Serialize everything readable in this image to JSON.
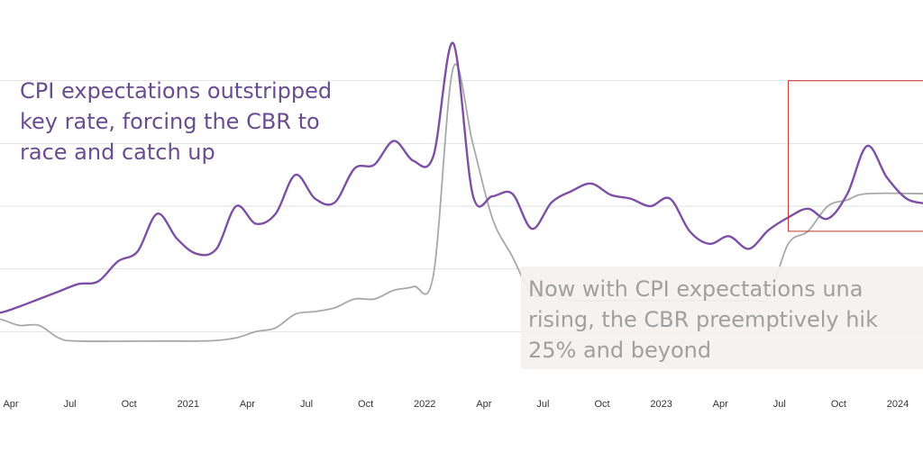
{
  "chart_data": {
    "type": "line",
    "x_ticks": [
      "Apr",
      "Jul",
      "Oct",
      "2021",
      "Apr",
      "Jul",
      "Oct",
      "2022",
      "Apr",
      "Jul",
      "Oct",
      "2023",
      "Apr",
      "Jul",
      "Oct",
      "2024"
    ],
    "ylim": [
      0,
      30
    ],
    "grid": "horizontal",
    "series": [
      {
        "color": "#7d4fa6",
        "points": [
          [
            "2020-03-01",
            6.5
          ],
          [
            "2020-04-01",
            6.5
          ],
          [
            "2020-05-01",
            7.0
          ],
          [
            "2020-06-01",
            7.6
          ],
          [
            "2020-07-01",
            8.2
          ],
          [
            "2020-08-01",
            8.8
          ],
          [
            "2020-09-01",
            9.0
          ],
          [
            "2020-10-01",
            10.6
          ],
          [
            "2020-11-01",
            11.4
          ],
          [
            "2020-12-01",
            14.4
          ],
          [
            "2021-01-01",
            12.4
          ],
          [
            "2021-02-01",
            11.2
          ],
          [
            "2021-03-01",
            11.6
          ],
          [
            "2021-04-01",
            15.0
          ],
          [
            "2021-05-01",
            13.6
          ],
          [
            "2021-06-01",
            14.4
          ],
          [
            "2021-07-01",
            17.5
          ],
          [
            "2021-08-01",
            15.6
          ],
          [
            "2021-09-01",
            15.3
          ],
          [
            "2021-10-01",
            18.0
          ],
          [
            "2021-11-01",
            18.3
          ],
          [
            "2021-12-01",
            20.2
          ],
          [
            "2022-01-01",
            18.6
          ],
          [
            "2022-02-01",
            19.0
          ],
          [
            "2022-03-01",
            28.0
          ],
          [
            "2022-04-01",
            15.9
          ],
          [
            "2022-05-01",
            15.8
          ],
          [
            "2022-06-01",
            16.0
          ],
          [
            "2022-07-01",
            13.2
          ],
          [
            "2022-08-01",
            15.3
          ],
          [
            "2022-09-01",
            16.2
          ],
          [
            "2022-10-01",
            16.8
          ],
          [
            "2022-11-01",
            15.9
          ],
          [
            "2022-12-01",
            15.6
          ],
          [
            "2023-01-01",
            15.0
          ],
          [
            "2023-02-01",
            15.6
          ],
          [
            "2023-03-01",
            13.0
          ],
          [
            "2023-04-01",
            12.0
          ],
          [
            "2023-05-01",
            12.6
          ],
          [
            "2023-06-01",
            11.6
          ],
          [
            "2023-07-01",
            13.1
          ],
          [
            "2023-08-01",
            14.1
          ],
          [
            "2023-09-01",
            14.8
          ],
          [
            "2023-10-01",
            14.0
          ],
          [
            "2023-11-01",
            16.0
          ],
          [
            "2023-12-01",
            19.8
          ],
          [
            "2024-01-01",
            17.3
          ],
          [
            "2024-02-01",
            15.6
          ],
          [
            "2024-03-01",
            15.2
          ]
        ]
      },
      {
        "color": "#a8a8a8",
        "points": [
          [
            "2020-03-01",
            6.0
          ],
          [
            "2020-04-01",
            6.0
          ],
          [
            "2020-05-01",
            5.5
          ],
          [
            "2020-06-01",
            5.5
          ],
          [
            "2020-07-01",
            4.5
          ],
          [
            "2020-08-01",
            4.25
          ],
          [
            "2020-12-01",
            4.25
          ],
          [
            "2021-01-01",
            4.25
          ],
          [
            "2021-02-01",
            4.25
          ],
          [
            "2021-03-01",
            4.3
          ],
          [
            "2021-04-01",
            4.5
          ],
          [
            "2021-05-01",
            5.0
          ],
          [
            "2021-06-01",
            5.3
          ],
          [
            "2021-07-01",
            6.4
          ],
          [
            "2021-08-01",
            6.6
          ],
          [
            "2021-09-01",
            6.9
          ],
          [
            "2021-10-01",
            7.6
          ],
          [
            "2021-11-01",
            7.6
          ],
          [
            "2021-12-01",
            8.3
          ],
          [
            "2022-01-01",
            8.6
          ],
          [
            "2022-02-01",
            9.5
          ],
          [
            "2022-03-01",
            26.0
          ],
          [
            "2022-04-01",
            20.0
          ],
          [
            "2022-05-01",
            14.0
          ],
          [
            "2022-06-01",
            11.0
          ],
          [
            "2022-07-01",
            8.0
          ],
          [
            "2022-08-01",
            8.0
          ],
          [
            "2022-09-01",
            7.5
          ],
          [
            "2023-01-01",
            7.5
          ],
          [
            "2023-06-01",
            7.5
          ],
          [
            "2023-07-01",
            7.8
          ],
          [
            "2023-08-01",
            12.0
          ],
          [
            "2023-09-01",
            13.0
          ],
          [
            "2023-10-01",
            15.0
          ],
          [
            "2023-11-01",
            15.5
          ],
          [
            "2023-12-01",
            16.0
          ],
          [
            "2024-03-01",
            16.0
          ]
        ]
      }
    ],
    "annotations": [
      {
        "id": "left",
        "text": "CPI expectations outstripped\nkey rate, forcing the CBR to\nrace and catch up"
      },
      {
        "id": "right",
        "text": "Now with CPI expectations una\nrising, the CBR preemptively hik\n25% and beyond"
      }
    ],
    "highlight_box": {
      "x_start": "2023-08-01",
      "x_end": "2024-03-01",
      "y_start": 13.0,
      "y_end": 25.0,
      "color": "#c0392b"
    }
  }
}
